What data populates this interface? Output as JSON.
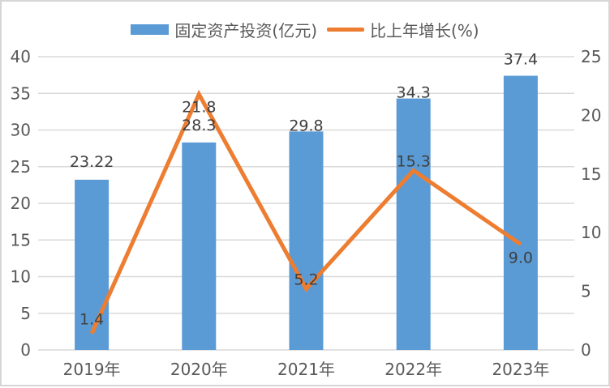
{
  "chart_data": {
    "type": "bar+line",
    "categories": [
      "2019年",
      "2020年",
      "2021年",
      "2022年",
      "2023年"
    ],
    "series": [
      {
        "name": "固定资产投资(亿元)",
        "type": "bar",
        "axis": "left",
        "color": "#5B9BD5",
        "values": [
          23.22,
          28.3,
          29.8,
          34.3,
          37.4
        ],
        "labels": [
          "23.22",
          "28.3",
          "29.8",
          "34.3",
          "37.4"
        ]
      },
      {
        "name": "比上年增长(%)",
        "type": "line",
        "axis": "right",
        "color": "#ED7D31",
        "values": [
          1.4,
          21.8,
          5.2,
          15.3,
          9.0
        ],
        "labels": [
          "1.4",
          "21.8",
          "5.2",
          "15.3",
          "9.0"
        ],
        "label_side": [
          "above",
          "below",
          "above",
          "above",
          "below"
        ]
      }
    ],
    "left_axis": {
      "min": 0,
      "max": 40,
      "step": 5,
      "ticks": [
        "0",
        "5",
        "10",
        "15",
        "20",
        "25",
        "30",
        "35",
        "40"
      ]
    },
    "right_axis": {
      "min": 0,
      "max": 25,
      "step": 5,
      "ticks": [
        "0",
        "5",
        "10",
        "15",
        "20",
        "25"
      ]
    },
    "grid": true,
    "legend_position": "top",
    "colors": {
      "grid": "#D9D9D9",
      "axis_text": "#595959",
      "label_text": "#404040",
      "background": "#FFFFFF",
      "border": "#D6D6D6"
    }
  }
}
